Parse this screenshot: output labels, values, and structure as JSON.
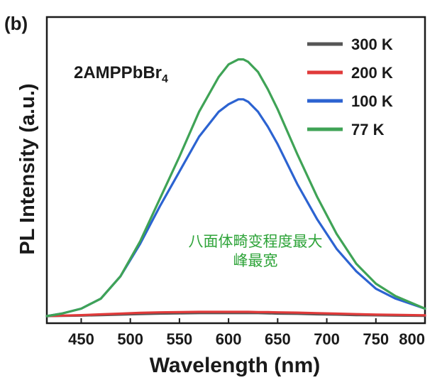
{
  "panel_label": "(b)",
  "chart_data": {
    "type": "line",
    "sample_label": "2AMPPbBr",
    "sample_label_sub": "4",
    "xlabel": "Wavelength (nm)",
    "ylabel": "PL Intensity (a.u.)",
    "xlim": [
      415,
      800
    ],
    "ylim": [
      0,
      1.2
    ],
    "xticks": [
      450,
      500,
      550,
      600,
      650,
      700,
      750,
      800
    ],
    "legend_position": "top-right",
    "annotation": [
      "八面体畸变程度最大",
      "峰最宽"
    ],
    "annotation_color": "#2fa43a",
    "x": [
      415,
      430,
      450,
      470,
      490,
      510,
      530,
      550,
      570,
      590,
      600,
      610,
      615,
      620,
      630,
      640,
      650,
      670,
      690,
      710,
      730,
      750,
      770,
      800
    ],
    "series": [
      {
        "name": "300 K",
        "color": "#555555",
        "values": [
          0.0,
          0.001,
          0.002,
          0.004,
          0.006,
          0.008,
          0.01,
          0.011,
          0.012,
          0.012,
          0.012,
          0.012,
          0.012,
          0.012,
          0.012,
          0.011,
          0.01,
          0.009,
          0.007,
          0.006,
          0.004,
          0.003,
          0.002,
          0.001
        ]
      },
      {
        "name": "200 K",
        "color": "#e03a3a",
        "values": [
          0.0,
          0.002,
          0.004,
          0.007,
          0.01,
          0.013,
          0.015,
          0.016,
          0.017,
          0.017,
          0.017,
          0.017,
          0.017,
          0.017,
          0.016,
          0.016,
          0.015,
          0.014,
          0.012,
          0.01,
          0.008,
          0.006,
          0.005,
          0.003
        ]
      },
      {
        "name": "100 K",
        "color": "#2c63d1",
        "values": [
          0.0,
          0.01,
          0.03,
          0.07,
          0.16,
          0.29,
          0.44,
          0.58,
          0.72,
          0.82,
          0.85,
          0.87,
          0.87,
          0.86,
          0.82,
          0.76,
          0.69,
          0.53,
          0.39,
          0.27,
          0.18,
          0.11,
          0.07,
          0.03
        ]
      },
      {
        "name": "77 K",
        "color": "#3fa356",
        "values": [
          0.0,
          0.01,
          0.03,
          0.07,
          0.16,
          0.3,
          0.47,
          0.64,
          0.82,
          0.96,
          1.01,
          1.03,
          1.03,
          1.02,
          0.98,
          0.91,
          0.83,
          0.65,
          0.48,
          0.33,
          0.21,
          0.13,
          0.08,
          0.03
        ]
      }
    ]
  }
}
